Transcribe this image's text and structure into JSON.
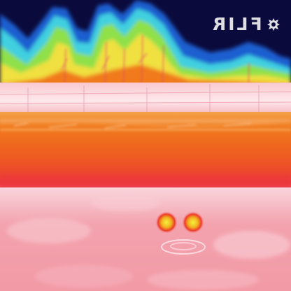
{
  "watermark": {
    "text": "FLIR",
    "mirrored": true,
    "color": "#f2f2f2"
  },
  "palette": {
    "sky": "#0b0a3c",
    "cold_blue": "#1f5fd0",
    "cyan": "#3fd0e0",
    "green": "#8fe04a",
    "yellow": "#f0e040",
    "orange": "#f07a1c",
    "red": "#e8283a",
    "warm_pink": "#f49aa6",
    "hot_white": "#fbe9ee"
  }
}
